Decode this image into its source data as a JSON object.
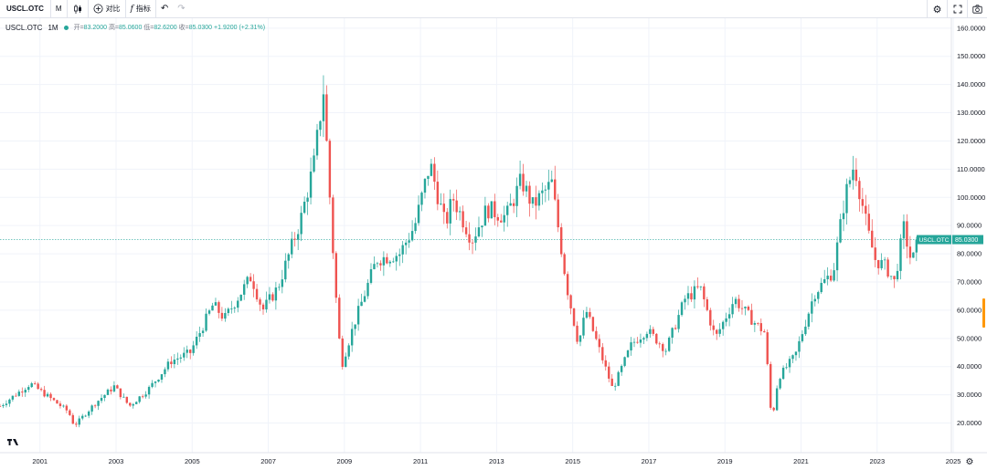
{
  "toolbar": {
    "symbol": "USCL.OTC",
    "interval": "M",
    "compare_label": "对比",
    "indicators_label": "指标"
  },
  "legend": {
    "symbol": "USCL.OTC",
    "timeframe": "1M",
    "open_label": "开=",
    "open": "83.2000",
    "high_label": "高=",
    "high": "85.0600",
    "low_label": "低=",
    "low": "82.6200",
    "close_label": "收=",
    "close": "85.0300",
    "change": "+1.9200",
    "change_pct": "(+2.31%)"
  },
  "price_tag": {
    "symbol": "USCL.OTC",
    "value": "85.0300"
  },
  "colors": {
    "up": "#26a69a",
    "down": "#ef5350",
    "grid": "#f0f3fa",
    "last_line": "#26a69a"
  },
  "chart_data": {
    "type": "candlestick",
    "interval": "monthly",
    "x_ticks": [
      "2001",
      "2003",
      "2005",
      "2007",
      "2009",
      "2011",
      "2013",
      "2015",
      "2017",
      "2019",
      "2021",
      "2023",
      "2025"
    ],
    "y_ticks": [
      "20.0000",
      "30.0000",
      "40.0000",
      "50.0000",
      "60.0000",
      "70.0000",
      "80.0000",
      "90.0000",
      "100.0000",
      "110.0000",
      "120.0000",
      "130.0000",
      "140.0000",
      "150.0000",
      "160.0000"
    ],
    "ylim": [
      9.5,
      163.5
    ],
    "xlim": [
      2000.0,
      2025.0
    ],
    "last_price": 85.03,
    "anchors": [
      [
        2000.0,
        26
      ],
      [
        2000.8,
        34
      ],
      [
        2001.3,
        29
      ],
      [
        2001.8,
        24
      ],
      [
        2001.95,
        19
      ],
      [
        2002.5,
        27
      ],
      [
        2003.0,
        33
      ],
      [
        2003.4,
        26
      ],
      [
        2003.9,
        32
      ],
      [
        2004.5,
        42
      ],
      [
        2005.0,
        45
      ],
      [
        2005.6,
        62
      ],
      [
        2005.9,
        57
      ],
      [
        2006.6,
        72
      ],
      [
        2006.9,
        60
      ],
      [
        2007.3,
        68
      ],
      [
        2007.9,
        92
      ],
      [
        2008.25,
        112
      ],
      [
        2008.5,
        138
      ],
      [
        2008.8,
        70
      ],
      [
        2008.97,
        40
      ],
      [
        2009.3,
        55
      ],
      [
        2009.9,
        78
      ],
      [
        2010.5,
        80
      ],
      [
        2010.9,
        90
      ],
      [
        2011.3,
        112
      ],
      [
        2011.7,
        90
      ],
      [
        2011.9,
        100
      ],
      [
        2012.4,
        85
      ],
      [
        2012.8,
        96
      ],
      [
        2013.3,
        93
      ],
      [
        2013.7,
        106
      ],
      [
        2014.0,
        97
      ],
      [
        2014.5,
        105
      ],
      [
        2014.9,
        68
      ],
      [
        2015.2,
        48
      ],
      [
        2015.4,
        60
      ],
      [
        2015.9,
        40
      ],
      [
        2016.1,
        32
      ],
      [
        2016.6,
        48
      ],
      [
        2017.0,
        53
      ],
      [
        2017.5,
        46
      ],
      [
        2018.0,
        64
      ],
      [
        2018.4,
        68
      ],
      [
        2018.8,
        50
      ],
      [
        2019.3,
        64
      ],
      [
        2019.8,
        56
      ],
      [
        2020.1,
        52
      ],
      [
        2020.28,
        20
      ],
      [
        2020.45,
        36
      ],
      [
        2020.9,
        44
      ],
      [
        2021.4,
        66
      ],
      [
        2021.9,
        74
      ],
      [
        2022.2,
        100
      ],
      [
        2022.45,
        112
      ],
      [
        2022.8,
        88
      ],
      [
        2023.0,
        78
      ],
      [
        2023.3,
        75
      ],
      [
        2023.5,
        70
      ],
      [
        2023.75,
        89
      ],
      [
        2023.95,
        77
      ],
      [
        2024.15,
        83.2
      ]
    ]
  }
}
